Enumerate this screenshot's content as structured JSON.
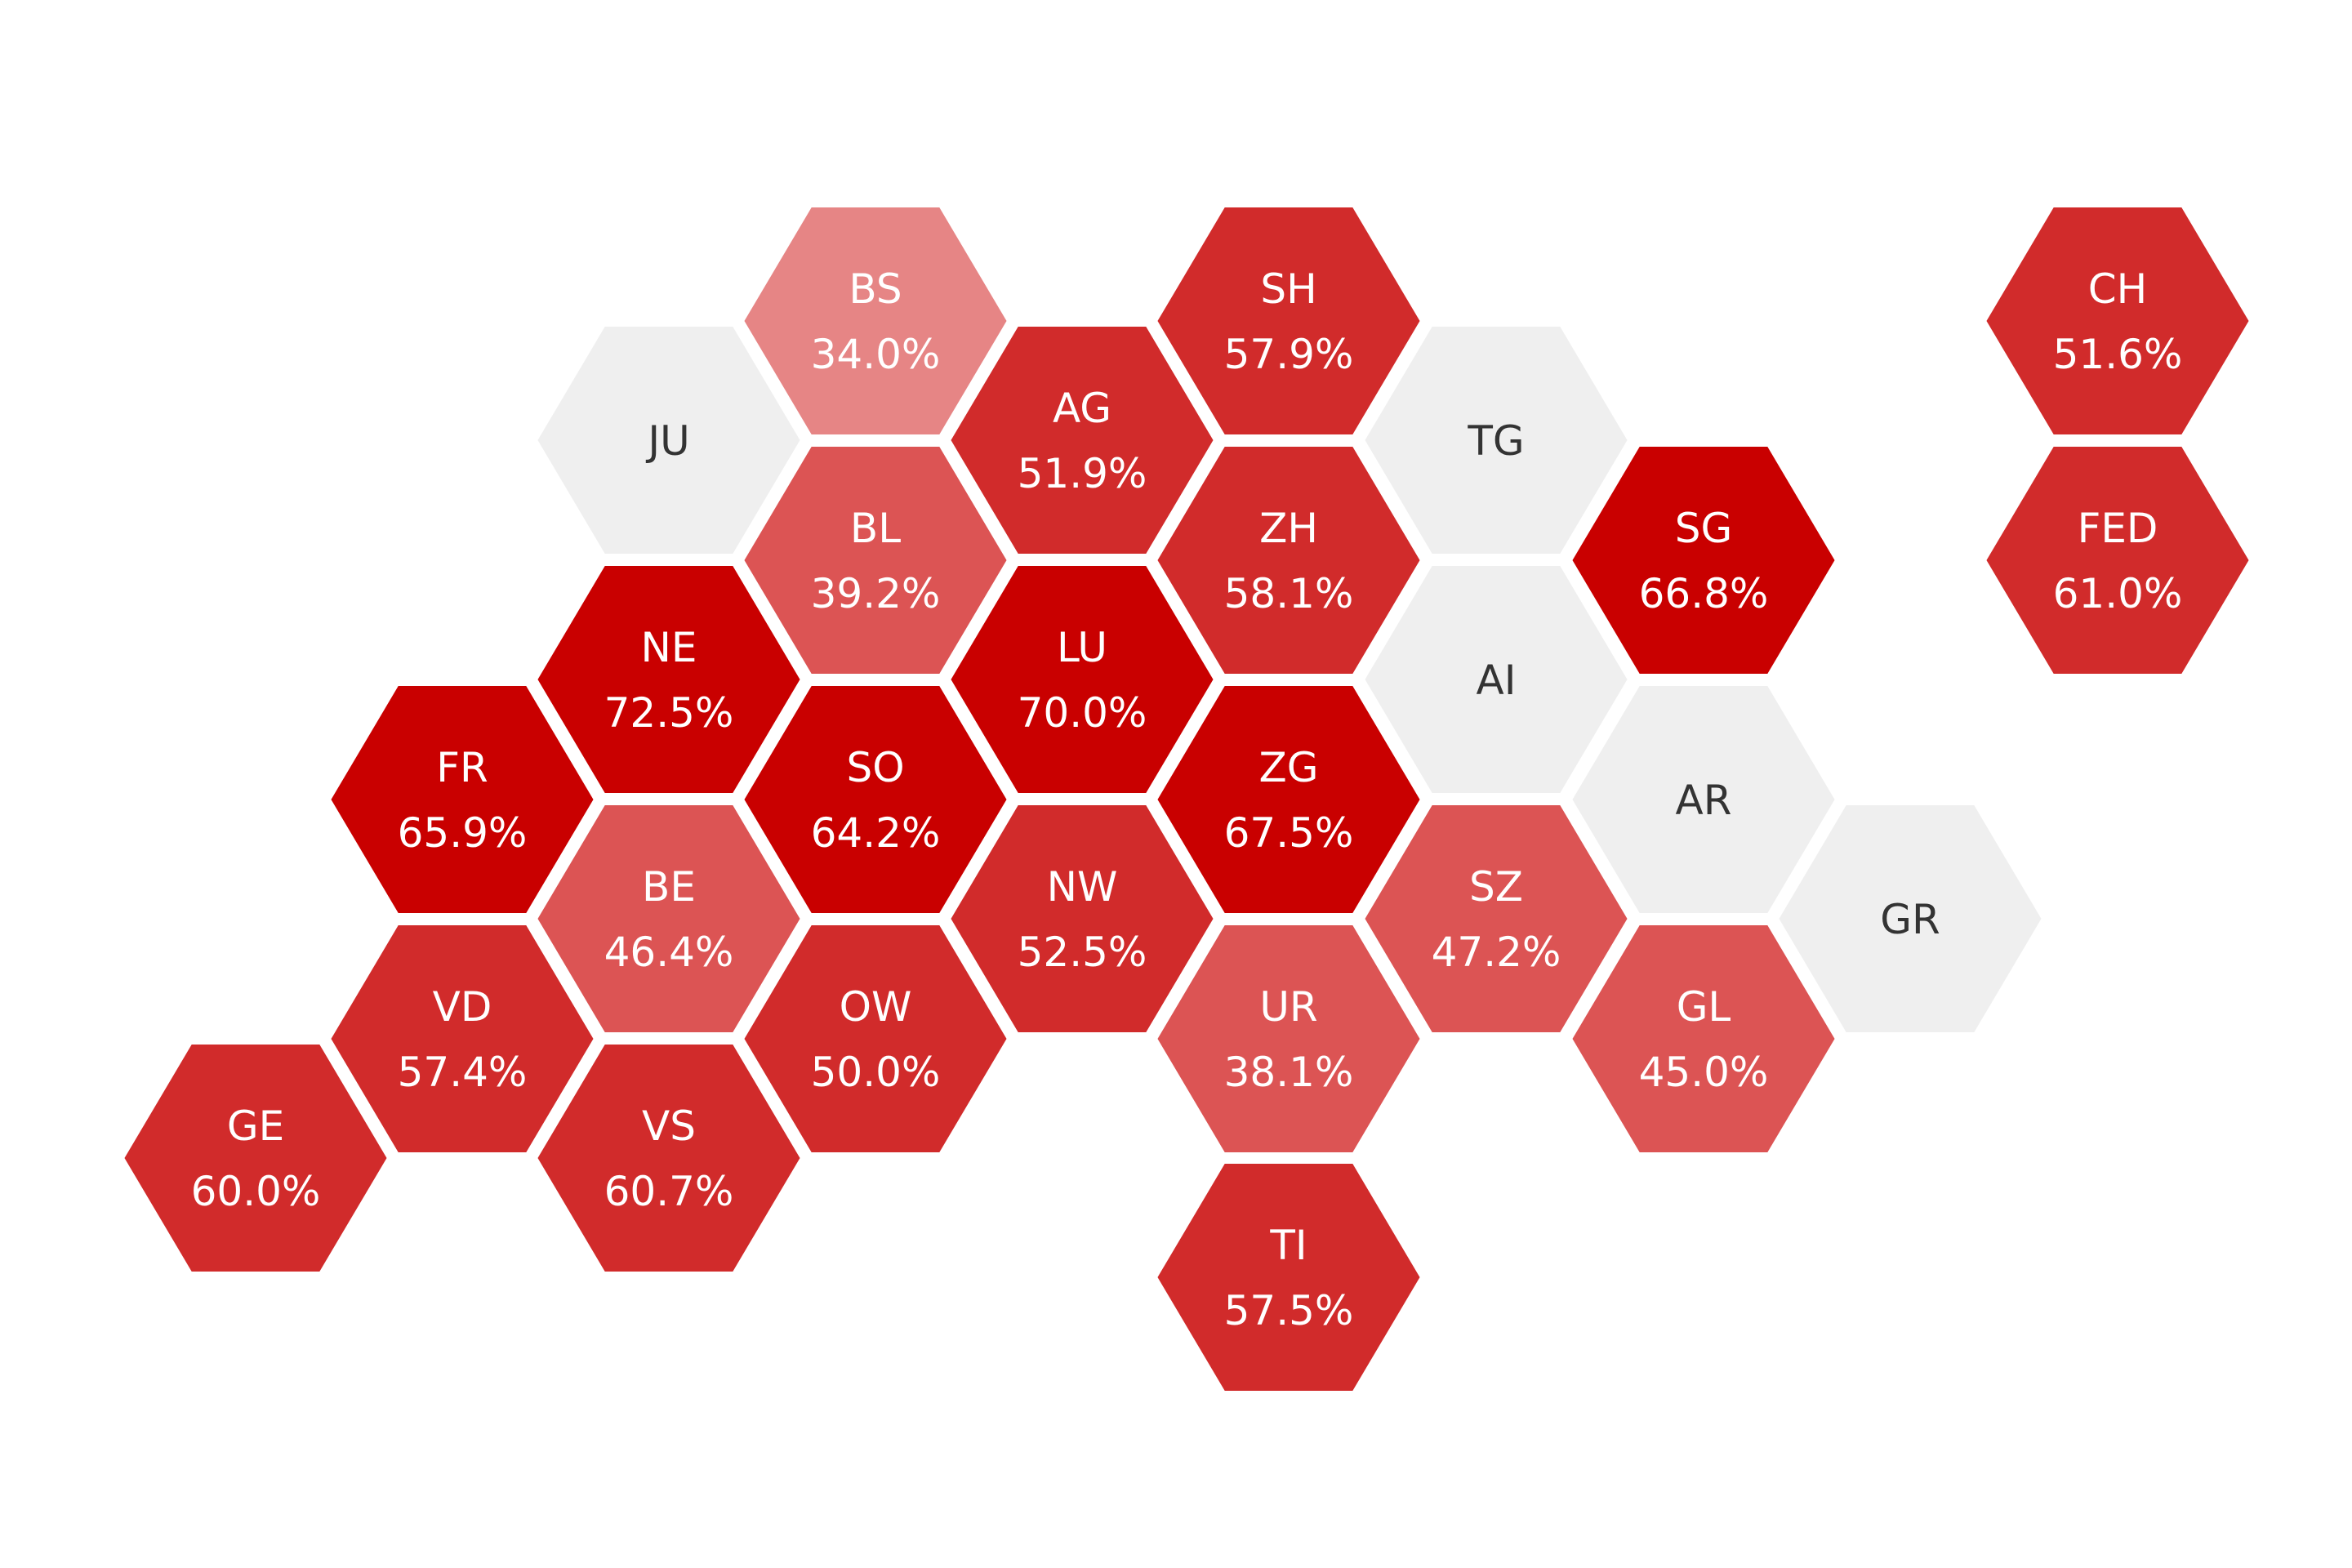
{
  "colors": {
    "very_high": "#c90000",
    "high": "#d12b2b",
    "medium": "#dc5454",
    "low": "#e68585",
    "no_data": "#efefef",
    "label_on_color": "#ffffff",
    "label_on_grey": "#333333",
    "border": "#ffffff"
  },
  "regions": [
    {
      "code": "BS",
      "value": "34.0%",
      "shade": "low"
    },
    {
      "code": "SH",
      "value": "57.9%",
      "shade": "high"
    },
    {
      "code": "CH",
      "value": "51.6%",
      "shade": "high"
    },
    {
      "code": "JU",
      "value": "",
      "shade": "no_data"
    },
    {
      "code": "AG",
      "value": "51.9%",
      "shade": "high"
    },
    {
      "code": "TG",
      "value": "",
      "shade": "no_data"
    },
    {
      "code": "BL",
      "value": "39.2%",
      "shade": "medium"
    },
    {
      "code": "ZH",
      "value": "58.1%",
      "shade": "high"
    },
    {
      "code": "SG",
      "value": "66.8%",
      "shade": "very_high"
    },
    {
      "code": "FED",
      "value": "61.0%",
      "shade": "high"
    },
    {
      "code": "NE",
      "value": "72.5%",
      "shade": "very_high"
    },
    {
      "code": "LU",
      "value": "70.0%",
      "shade": "very_high"
    },
    {
      "code": "AI",
      "value": "",
      "shade": "no_data"
    },
    {
      "code": "FR",
      "value": "65.9%",
      "shade": "very_high"
    },
    {
      "code": "SO",
      "value": "64.2%",
      "shade": "very_high"
    },
    {
      "code": "ZG",
      "value": "67.5%",
      "shade": "very_high"
    },
    {
      "code": "AR",
      "value": "",
      "shade": "no_data"
    },
    {
      "code": "BE",
      "value": "46.4%",
      "shade": "medium"
    },
    {
      "code": "NW",
      "value": "52.5%",
      "shade": "high"
    },
    {
      "code": "SZ",
      "value": "47.2%",
      "shade": "medium"
    },
    {
      "code": "GR",
      "value": "",
      "shade": "no_data"
    },
    {
      "code": "VD",
      "value": "57.4%",
      "shade": "high"
    },
    {
      "code": "OW",
      "value": "50.0%",
      "shade": "high"
    },
    {
      "code": "UR",
      "value": "38.1%",
      "shade": "medium"
    },
    {
      "code": "GL",
      "value": "45.0%",
      "shade": "medium"
    },
    {
      "code": "GE",
      "value": "60.0%",
      "shade": "high"
    },
    {
      "code": "VS",
      "value": "60.7%",
      "shade": "high"
    },
    {
      "code": "TI",
      "value": "57.5%",
      "shade": "high"
    }
  ]
}
